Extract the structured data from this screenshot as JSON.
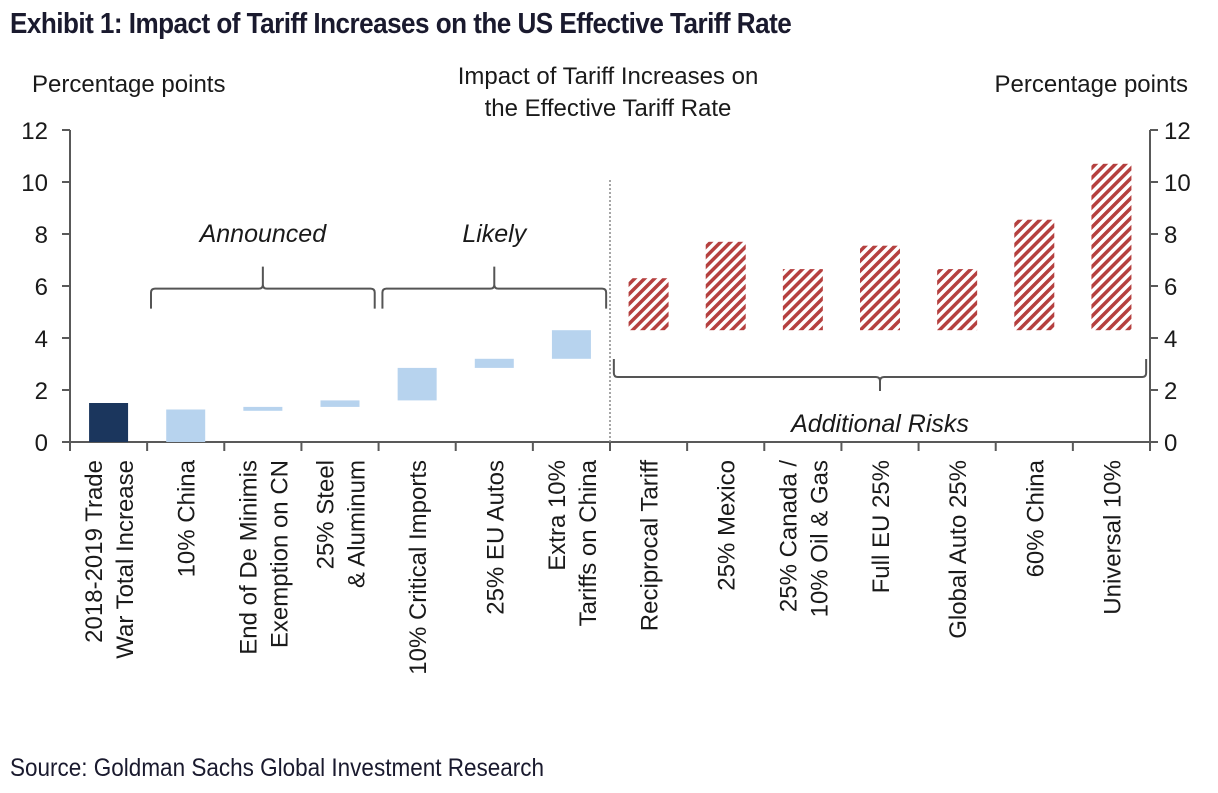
{
  "title": "Exhibit 1: Impact of Tariff Increases on the US Effective Tariff Rate",
  "source": "Source: Goldman Sachs Global Investment Research",
  "colors": {
    "dark_navy": "#1b365d",
    "light_blue": "#b7d3ee",
    "hatch_red": "#b5403f",
    "axis": "#595959",
    "text": "#1a1a1a"
  },
  "chart_data": {
    "type": "bar",
    "subtype": "waterfall",
    "title": "Impact of Tariff Increases on the Effective Tariff Rate",
    "title_lines": [
      "Impact of Tariff Increases on",
      "the Effective Tariff Rate"
    ],
    "ylabel_left": "Percentage points",
    "ylabel_right": "Percentage points",
    "ylim": [
      0,
      12
    ],
    "yticks": [
      0,
      2,
      4,
      6,
      8,
      10,
      12
    ],
    "grid": false,
    "categories": [
      [
        "2018-2019 Trade",
        "War Total Increase"
      ],
      [
        "10% China"
      ],
      [
        "End of De Minimis",
        "Exemption on CN"
      ],
      [
        "25% Steel",
        "& Aluminum"
      ],
      [
        "10% Critical Imports"
      ],
      [
        "25% EU Autos"
      ],
      [
        "Extra 10%",
        "Tariffs on China"
      ],
      [
        "Reciprocal Tariff"
      ],
      [
        "25% Mexico"
      ],
      [
        "25% Canada /",
        "10% Oil & Gas"
      ],
      [
        "Full EU 25%"
      ],
      [
        "Global Auto 25%"
      ],
      [
        "60% China"
      ],
      [
        "Universal 10%"
      ]
    ],
    "bars": [
      {
        "bottom": 0.0,
        "top": 1.5,
        "style": "dark"
      },
      {
        "bottom": 0.0,
        "top": 1.25,
        "style": "light"
      },
      {
        "bottom": 1.2,
        "top": 1.35,
        "style": "light"
      },
      {
        "bottom": 1.35,
        "top": 1.6,
        "style": "light"
      },
      {
        "bottom": 1.6,
        "top": 2.85,
        "style": "light"
      },
      {
        "bottom": 2.85,
        "top": 3.2,
        "style": "light"
      },
      {
        "bottom": 3.2,
        "top": 4.3,
        "style": "light"
      },
      {
        "bottom": 4.3,
        "top": 6.3,
        "style": "hatch"
      },
      {
        "bottom": 4.3,
        "top": 7.7,
        "style": "hatch"
      },
      {
        "bottom": 4.3,
        "top": 6.65,
        "style": "hatch"
      },
      {
        "bottom": 4.3,
        "top": 7.55,
        "style": "hatch"
      },
      {
        "bottom": 4.3,
        "top": 6.65,
        "style": "hatch"
      },
      {
        "bottom": 4.3,
        "top": 8.55,
        "style": "hatch"
      },
      {
        "bottom": 4.3,
        "top": 10.7,
        "style": "hatch"
      }
    ],
    "annotations": [
      {
        "label": "Announced",
        "from_index": 1,
        "to_index": 3,
        "bracket": "above",
        "at_value": 5.9,
        "label_value": 8.0
      },
      {
        "label": "Likely",
        "from_index": 4,
        "to_index": 6,
        "bracket": "above",
        "at_value": 5.9,
        "label_value": 8.0
      },
      {
        "label": "Additional Risks",
        "from_index": 7,
        "to_index": 13,
        "bracket": "below",
        "at_value": 2.5,
        "label_value": 0.7
      }
    ],
    "divider_after_index": 6
  }
}
